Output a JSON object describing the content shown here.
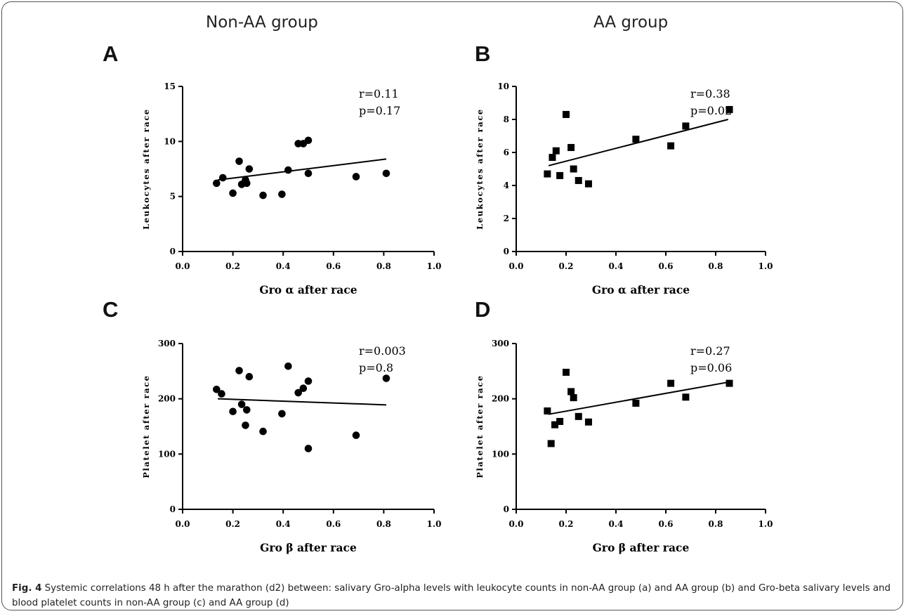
{
  "titles": {
    "left": "Non-AA group",
    "right": "AA group"
  },
  "caption": {
    "lead": "Fig. 4",
    "text": " Systemic correlations 48 h after the marathon (d2) between: salivary Gro-alpha levels with leukocyte counts in non-AA group (a) and AA group (b) and Gro-beta salivary levels and blood platelet counts in non-AA group (c) and AA group (d)"
  },
  "chart_data": [
    {
      "panel": "A",
      "type": "scatter",
      "xlabel": "Gro α after race",
      "ylabel": "Leukocytes after race",
      "xlim": [
        0,
        1.0
      ],
      "ylim": [
        0,
        15
      ],
      "xticks": [
        "0.0",
        "0.2",
        "0.4",
        "0.6",
        "0.8",
        "1.0"
      ],
      "yticks": [
        "0",
        "5",
        "10",
        "15"
      ],
      "marker": "circle",
      "color": "#000000",
      "annotation": [
        "r=0.11",
        "p=0.17"
      ],
      "fit_line": [
        [
          0.14,
          6.5
        ],
        [
          0.81,
          8.4
        ]
      ],
      "points": [
        [
          0.135,
          6.2
        ],
        [
          0.16,
          6.7
        ],
        [
          0.2,
          5.3
        ],
        [
          0.225,
          8.2
        ],
        [
          0.235,
          6.1
        ],
        [
          0.25,
          6.5
        ],
        [
          0.255,
          6.2
        ],
        [
          0.265,
          7.5
        ],
        [
          0.32,
          5.1
        ],
        [
          0.395,
          5.2
        ],
        [
          0.42,
          7.4
        ],
        [
          0.46,
          9.8
        ],
        [
          0.48,
          9.8
        ],
        [
          0.5,
          10.1
        ],
        [
          0.5,
          7.1
        ],
        [
          0.69,
          6.8
        ],
        [
          0.81,
          7.1
        ]
      ]
    },
    {
      "panel": "B",
      "type": "scatter",
      "xlabel": "Gro α after race",
      "ylabel": "Leukocytes after race",
      "xlim": [
        0,
        1.0
      ],
      "ylim": [
        0,
        10
      ],
      "xticks": [
        "0.0",
        "0.2",
        "0.4",
        "0.6",
        "0.8",
        "1.0"
      ],
      "yticks": [
        "0",
        "2",
        "4",
        "6",
        "8",
        "10"
      ],
      "marker": "square",
      "color": "#000000",
      "annotation": [
        "r=0.38",
        "p=0.02"
      ],
      "fit_line": [
        [
          0.13,
          5.2
        ],
        [
          0.85,
          8.0
        ]
      ],
      "points": [
        [
          0.125,
          4.7
        ],
        [
          0.145,
          5.7
        ],
        [
          0.16,
          6.1
        ],
        [
          0.175,
          4.6
        ],
        [
          0.2,
          8.3
        ],
        [
          0.22,
          6.3
        ],
        [
          0.23,
          5.0
        ],
        [
          0.25,
          4.3
        ],
        [
          0.29,
          4.1
        ],
        [
          0.48,
          6.8
        ],
        [
          0.62,
          6.4
        ],
        [
          0.68,
          7.6
        ],
        [
          0.855,
          8.6
        ]
      ]
    },
    {
      "panel": "C",
      "type": "scatter",
      "xlabel": "Gro β after race",
      "ylabel": "Platelet after race",
      "xlim": [
        0,
        1.0
      ],
      "ylim": [
        0,
        300
      ],
      "xticks": [
        "0.0",
        "0.2",
        "0.4",
        "0.6",
        "0.8",
        "1.0"
      ],
      "yticks": [
        "0",
        "100",
        "200",
        "300"
      ],
      "marker": "circle",
      "color": "#000000",
      "annotation": [
        "r=0.003",
        "p=0.8"
      ],
      "fit_line": [
        [
          0.14,
          200
        ],
        [
          0.81,
          189
        ]
      ],
      "points": [
        [
          0.135,
          217
        ],
        [
          0.155,
          209
        ],
        [
          0.2,
          177
        ],
        [
          0.225,
          251
        ],
        [
          0.235,
          190
        ],
        [
          0.25,
          152
        ],
        [
          0.255,
          180
        ],
        [
          0.265,
          240
        ],
        [
          0.32,
          141
        ],
        [
          0.395,
          173
        ],
        [
          0.42,
          259
        ],
        [
          0.46,
          211
        ],
        [
          0.48,
          219
        ],
        [
          0.5,
          232
        ],
        [
          0.5,
          110
        ],
        [
          0.69,
          134
        ],
        [
          0.81,
          237
        ]
      ]
    },
    {
      "panel": "D",
      "type": "scatter",
      "xlabel": "Gro β after race",
      "ylabel": "Platelet after race",
      "xlim": [
        0,
        1.0
      ],
      "ylim": [
        0,
        300
      ],
      "xticks": [
        "0.0",
        "0.2",
        "0.4",
        "0.6",
        "0.8",
        "1.0"
      ],
      "yticks": [
        "0",
        "100",
        "200",
        "300"
      ],
      "marker": "square",
      "color": "#000000",
      "annotation": [
        "r=0.27",
        "p=0.06"
      ],
      "fit_line": [
        [
          0.13,
          172
        ],
        [
          0.85,
          230
        ]
      ],
      "points": [
        [
          0.125,
          178
        ],
        [
          0.14,
          119
        ],
        [
          0.155,
          153
        ],
        [
          0.175,
          159
        ],
        [
          0.2,
          248
        ],
        [
          0.22,
          213
        ],
        [
          0.23,
          202
        ],
        [
          0.25,
          168
        ],
        [
          0.29,
          158
        ],
        [
          0.48,
          192
        ],
        [
          0.62,
          228
        ],
        [
          0.68,
          203
        ],
        [
          0.855,
          228
        ]
      ]
    }
  ]
}
